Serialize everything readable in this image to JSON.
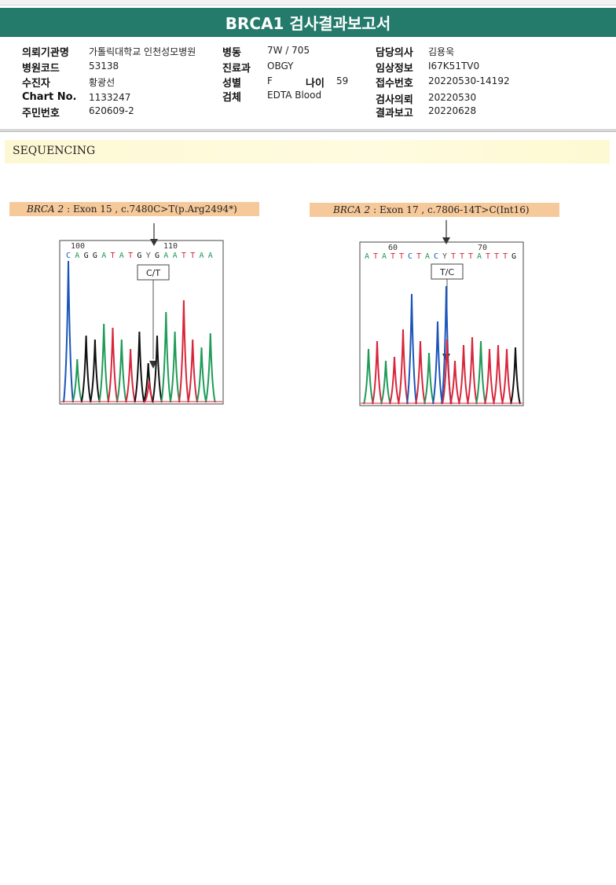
{
  "report": {
    "title": "BRCA1 검사결과보고서"
  },
  "patient": {
    "institution_label": "의뢰기관명",
    "institution": "가톨릭대학교 인천성모병원",
    "hospital_code_label": "병원코드",
    "hospital_code": "53138",
    "patient_label": "수진자",
    "patient": "황광선",
    "chart_label": "Chart No.",
    "chart": "1133247",
    "resident_label": "주민번호",
    "resident": "620609-2",
    "ward_label": "병동",
    "ward": "7W / 705",
    "dept_label": "진료과",
    "dept": "OBGY",
    "sex_label": "성별",
    "sex": "F",
    "age_label": "나이",
    "age": "59",
    "specimen_label": "검체",
    "specimen": "EDTA Blood",
    "doctor_label": "담당의사",
    "doctor": "김용욱",
    "clinical_label": "임상정보",
    "clinical": "I67K51TV0",
    "receipt_label": "접수번호",
    "receipt": "20220530-14192",
    "request_label": "검사의뢰",
    "request": "20220530",
    "result_label": "결과보고",
    "result": "20220628"
  },
  "section": {
    "title": "SEQUENCING"
  },
  "variants": [
    {
      "gene": "BRCA 2",
      "desc": ": Exon 15 , c.7480C>T(p.Arg2494*)",
      "pos_start": "100",
      "pos_end": "110",
      "sequence": "C A G G A T A T G Y G A A T T A A",
      "call": "C/T"
    },
    {
      "gene": "BRCA 2",
      "desc": ": Exon 17 , c.7806-14T>C(Int16)",
      "pos_start": "60",
      "pos_end": "70",
      "sequence": "A T A T T C T A C Y T T T A T T T G",
      "call": "T/C"
    }
  ],
  "colors": {
    "header": "#247a6b",
    "label_bg": "#f6c99a",
    "trace_A": "#1f9a57",
    "trace_C": "#1a55b8",
    "trace_G": "#111111",
    "trace_T": "#d8253a"
  }
}
